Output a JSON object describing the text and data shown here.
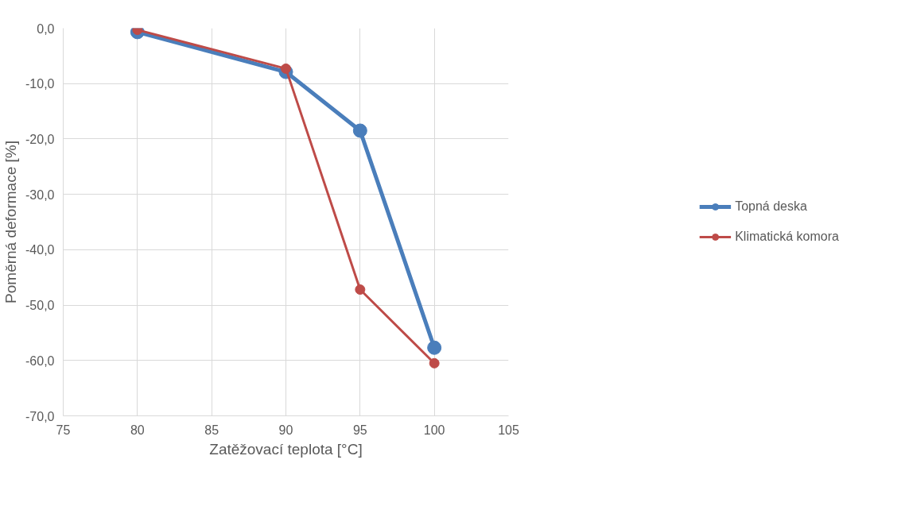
{
  "chart_data": {
    "type": "line",
    "xlabel": "Zatěžovací teplota [°C]",
    "ylabel": "Poměrná deformace [%]",
    "x": [
      80,
      90,
      95,
      100
    ],
    "series": [
      {
        "name": "Topná deska",
        "color": "#4a7ebb",
        "values": [
          -0.7,
          -7.9,
          -18.5,
          -57.7
        ]
      },
      {
        "name": "Klimatická komora",
        "color": "#be4b48",
        "values": [
          -0.3,
          -7.3,
          -47.2,
          -60.5
        ]
      }
    ],
    "xlim": [
      75,
      105
    ],
    "xticks": [
      75,
      80,
      85,
      90,
      95,
      100,
      105
    ],
    "ylim": [
      -70,
      0
    ],
    "yticks": [
      {
        "value": 0,
        "label": "0,0"
      },
      {
        "value": -10,
        "label": "-10,0"
      },
      {
        "value": -20,
        "label": "-20,0"
      },
      {
        "value": -30,
        "label": "-30,0"
      },
      {
        "value": -40,
        "label": "-40,0"
      },
      {
        "value": -50,
        "label": "-50,0"
      },
      {
        "value": -60,
        "label": "-60,0"
      },
      {
        "value": -70,
        "label": "-70,0"
      }
    ],
    "grid": true,
    "legend": "right",
    "marker": "circle",
    "line_style": "solid"
  }
}
